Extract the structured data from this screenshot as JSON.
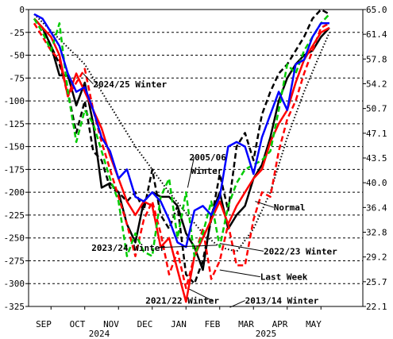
{
  "chart_data": {
    "type": "line",
    "left_axis": {
      "ticks": [
        "0",
        "-25",
        "-50",
        "-75",
        "-100",
        "-125",
        "-150",
        "-175",
        "-200",
        "-225",
        "-250",
        "-275",
        "-300",
        "-325"
      ],
      "ylim": [
        -325,
        0
      ]
    },
    "right_axis": {
      "ticks": [
        "65.0",
        "61.4",
        "57.8",
        "54.2",
        "50.7",
        "47.1",
        "43.5",
        "40.0",
        "36.4",
        "32.8",
        "29.2",
        "25.7",
        "22.1"
      ]
    },
    "x_months": [
      "SEP",
      "OCT",
      "NOV",
      "DEC",
      "JAN",
      "FEB",
      "MAR",
      "APR",
      "MAY"
    ],
    "x_years": [
      "2024",
      "2025"
    ],
    "grid": true,
    "series": [
      {
        "name": "Normal",
        "color": "#000000",
        "style": "dotted",
        "x": [
          0,
          1.5,
          3,
          4,
          5,
          5.5,
          6,
          6.5,
          7,
          7.5,
          8,
          8.4,
          8.75
        ],
        "y": [
          -5,
          -60,
          -150,
          -200,
          -245,
          -260,
          -265,
          -240,
          -200,
          -140,
          -90,
          -55,
          -25
        ]
      },
      {
        "name": "2024/25 Winter",
        "color": "#000000",
        "style": "solid",
        "x": [
          0,
          0.25,
          0.5,
          0.75,
          1.0,
          1.25,
          1.5,
          1.75,
          2.0,
          2.25,
          2.5,
          2.75,
          3.0,
          3.25,
          3.5,
          3.75,
          4.0,
          4.25,
          4.5,
          4.75,
          5.0,
          5.25,
          5.5,
          5.75,
          6.0,
          6.25,
          6.5,
          6.75,
          7.0,
          7.25,
          7.5,
          7.75,
          8.0,
          8.25,
          8.5,
          8.75
        ],
        "y": [
          -10,
          -20,
          -40,
          -72,
          -72,
          -105,
          -80,
          -125,
          -195,
          -190,
          -200,
          -235,
          -255,
          -210,
          -200,
          -205,
          -205,
          -215,
          -245,
          -260,
          -285,
          -225,
          -200,
          -240,
          -225,
          -215,
          -185,
          -170,
          -140,
          -100,
          -75,
          -60,
          -50,
          -45,
          -30,
          -20
        ]
      },
      {
        "name": "2005/06 Winter",
        "color": "#000000",
        "style": "dashed",
        "x": [
          0,
          0.25,
          0.5,
          0.75,
          1.0,
          1.25,
          1.5,
          1.75,
          2.0,
          2.25,
          2.5,
          2.75,
          3.0,
          3.25,
          3.5,
          3.75,
          4.0,
          4.25,
          4.5,
          4.75,
          5.0,
          5.25,
          5.5,
          5.75,
          6.0,
          6.25,
          6.5,
          6.75,
          7.0,
          7.25,
          7.5,
          7.75,
          8.0,
          8.25,
          8.5,
          8.75
        ],
        "y": [
          -10,
          -20,
          -40,
          -60,
          -90,
          -135,
          -100,
          -155,
          -165,
          -195,
          -200,
          -210,
          -200,
          -220,
          -175,
          -225,
          -240,
          -215,
          -290,
          -300,
          -275,
          -230,
          -180,
          -220,
          -150,
          -135,
          -165,
          -115,
          -90,
          -70,
          -60,
          -45,
          -30,
          -10,
          0,
          -5
        ]
      },
      {
        "name": "2013/14 Winter",
        "color": "#ff0000",
        "style": "dashed",
        "x": [
          0,
          0.25,
          0.5,
          0.75,
          1.0,
          1.25,
          1.5,
          1.75,
          2.0,
          2.25,
          2.5,
          2.75,
          3.0,
          3.25,
          3.5,
          3.75,
          4.0,
          4.25,
          4.5,
          4.75,
          5.0,
          5.25,
          5.5,
          5.75,
          6.0,
          6.25,
          6.5,
          6.75,
          7.0,
          7.25,
          7.5,
          7.75,
          8.0,
          8.25,
          8.5,
          8.75
        ],
        "y": [
          -15,
          -30,
          -45,
          -55,
          -95,
          -80,
          -65,
          -110,
          -145,
          -175,
          -205,
          -235,
          -270,
          -230,
          -210,
          -245,
          -290,
          -265,
          -305,
          -270,
          -240,
          -295,
          -275,
          -235,
          -280,
          -280,
          -230,
          -200,
          -205,
          -155,
          -120,
          -100,
          -70,
          -45,
          -20,
          -15
        ]
      },
      {
        "name": "2021/22 Winter",
        "color": "#ff0000",
        "style": "solid",
        "x": [
          0,
          0.25,
          0.5,
          0.75,
          1.0,
          1.25,
          1.5,
          1.75,
          2.0,
          2.25,
          2.5,
          2.75,
          3.0,
          3.25,
          3.5,
          3.75,
          4.0,
          4.25,
          4.5,
          4.75,
          5.0,
          5.25,
          5.5,
          5.75,
          6.0,
          6.25,
          6.5,
          6.75,
          7.0,
          7.25,
          7.5,
          7.75,
          8.0,
          8.25,
          8.5,
          8.75
        ],
        "y": [
          -10,
          -20,
          -30,
          -50,
          -95,
          -70,
          -90,
          -110,
          -130,
          -160,
          -185,
          -210,
          -225,
          -210,
          -215,
          -260,
          -250,
          -285,
          -320,
          -270,
          -250,
          -230,
          -210,
          -235,
          -215,
          -200,
          -185,
          -175,
          -145,
          -125,
          -110,
          -80,
          -55,
          -40,
          -25,
          -20
        ]
      },
      {
        "name": "2022/23 Winter",
        "color": "#00cc00",
        "style": "dashed",
        "x": [
          0,
          0.25,
          0.5,
          0.75,
          1.0,
          1.25,
          1.5,
          1.75,
          2.0,
          2.25,
          2.5,
          2.75,
          3.0,
          3.25,
          3.5,
          3.75,
          4.0,
          4.25,
          4.5,
          4.75,
          5.0,
          5.25,
          5.5,
          5.75,
          6.0,
          6.25,
          6.5,
          6.75,
          7.0,
          7.25,
          7.5,
          7.75,
          8.0,
          8.25,
          8.5,
          8.75
        ],
        "y": [
          -10,
          -25,
          -45,
          -15,
          -90,
          -145,
          -110,
          -125,
          -155,
          -185,
          -210,
          -270,
          -245,
          -265,
          -270,
          -205,
          -185,
          -250,
          -200,
          -270,
          -245,
          -210,
          -260,
          -215,
          -190,
          -175,
          -170,
          -165,
          -155,
          -110,
          -60,
          -70,
          -45,
          -30,
          -15,
          -5
        ]
      },
      {
        "name": "2023/24 Winter",
        "color": "#0000ff",
        "style": "solid",
        "x": [
          0,
          0.25,
          0.5,
          0.75,
          1.0,
          1.25,
          1.5,
          1.75,
          2.0,
          2.25,
          2.5,
          2.75,
          3.0,
          3.25,
          3.5,
          3.75,
          4.0,
          4.25,
          4.5,
          4.75,
          5.0,
          5.25,
          5.5,
          5.75,
          6.0,
          6.25,
          6.5,
          6.75,
          7.0,
          7.25,
          7.5,
          7.75,
          8.0,
          8.25,
          8.5,
          8.75
        ],
        "y": [
          -5,
          -10,
          -25,
          -40,
          -70,
          -90,
          -85,
          -110,
          -140,
          -155,
          -185,
          -175,
          -205,
          -210,
          -200,
          -210,
          -230,
          -255,
          -260,
          -220,
          -215,
          -225,
          -205,
          -150,
          -145,
          -150,
          -180,
          -140,
          -115,
          -90,
          -110,
          -60,
          -55,
          -30,
          -15,
          -15
        ]
      },
      {
        "name": "Last Week",
        "color": "#0000ff",
        "style": "solid",
        "x": [],
        "y": []
      }
    ],
    "annotations": [
      {
        "text": "2024/25 Winter",
        "x": 1.75,
        "y": -85
      },
      {
        "text": "2005/06",
        "x": 4.6,
        "y": -165
      },
      {
        "text": "Winter",
        "x": 4.65,
        "y": -180
      },
      {
        "text": "Normal",
        "x": 7.1,
        "y": -220
      },
      {
        "text": "2022/23 Winter",
        "x": 6.8,
        "y": -268
      },
      {
        "text": "2023/24 Winter",
        "x": 1.7,
        "y": -264
      },
      {
        "text": "Last Week",
        "x": 6.7,
        "y": -296
      },
      {
        "text": "2021/22 Winter",
        "x": 3.3,
        "y": -322
      },
      {
        "text": "2013/14 Winter",
        "x": 6.25,
        "y": -322
      }
    ]
  }
}
